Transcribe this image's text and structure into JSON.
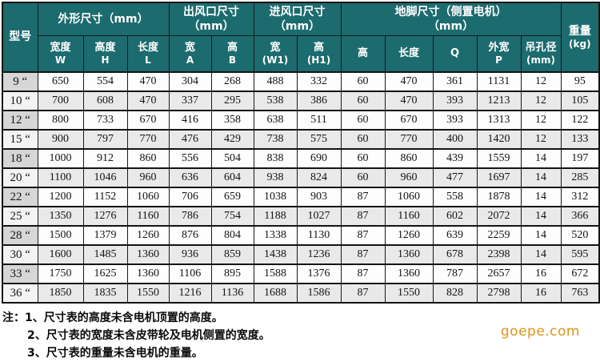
{
  "header": {
    "model_label": "型号",
    "groups": [
      {
        "l1": "外形尺寸（mm）",
        "l2": ""
      },
      {
        "l1": "出风口尺寸",
        "l2": "（mm）"
      },
      {
        "l1": "进风口尺寸",
        "l2": "（mm）"
      },
      {
        "l1": "地脚尺寸（侧置电机）",
        "l2": "（mm）"
      }
    ],
    "weight": {
      "l1": "重量",
      "l2": "(kg)"
    },
    "subcols": [
      {
        "l1": "宽度",
        "l2": "W"
      },
      {
        "l1": "高度",
        "l2": "H"
      },
      {
        "l1": "长度",
        "l2": "L"
      },
      {
        "l1": "宽",
        "l2": "A"
      },
      {
        "l1": "高",
        "l2": "B"
      },
      {
        "l1": "宽",
        "l2": "(W1)"
      },
      {
        "l1": "高",
        "l2": "(H1)"
      },
      {
        "l1": "高",
        "l2": ""
      },
      {
        "l1": "长度",
        "l2": ""
      },
      {
        "l1": "Q",
        "l2": ""
      },
      {
        "l1": "外宽",
        "l2": "P"
      },
      {
        "l1": "吊孔径",
        "l2": "(mm)"
      }
    ]
  },
  "table": {
    "rows": [
      {
        "model": "9 “",
        "values": [
          650,
          554,
          470,
          304,
          268,
          488,
          332,
          60,
          470,
          361,
          1131,
          12,
          95
        ]
      },
      {
        "model": "10 “",
        "values": [
          700,
          608,
          470,
          337,
          295,
          538,
          386,
          60,
          470,
          393,
          1213,
          12,
          105
        ]
      },
      {
        "model": "12 “",
        "values": [
          800,
          733,
          670,
          416,
          358,
          638,
          511,
          60,
          670,
          393,
          1313,
          12,
          122
        ]
      },
      {
        "model": "15 “",
        "values": [
          900,
          797,
          770,
          476,
          429,
          738,
          575,
          60,
          770,
          400,
          1420,
          12,
          133
        ]
      },
      {
        "model": "18 “",
        "values": [
          1000,
          912,
          860,
          556,
          504,
          838,
          690,
          60,
          860,
          439,
          1559,
          14,
          197
        ]
      },
      {
        "model": "20 “",
        "values": [
          1100,
          1046,
          960,
          636,
          604,
          938,
          824,
          60,
          960,
          477,
          1697,
          14,
          285
        ]
      },
      {
        "model": "22 “",
        "values": [
          1200,
          1152,
          1060,
          706,
          659,
          1038,
          903,
          87,
          1060,
          558,
          1878,
          14,
          312
        ]
      },
      {
        "model": "25 “",
        "values": [
          1350,
          1276,
          1160,
          786,
          754,
          1188,
          1027,
          87,
          1160,
          602,
          2072,
          14,
          366
        ]
      },
      {
        "model": "28 “",
        "values": [
          1500,
          1379,
          1260,
          876,
          804,
          1338,
          1130,
          87,
          1260,
          639,
          2259,
          14,
          520
        ]
      },
      {
        "model": "30 “",
        "values": [
          1600,
          1485,
          1360,
          936,
          859,
          1438,
          1236,
          87,
          1360,
          678,
          2398,
          14,
          595
        ]
      },
      {
        "model": "33 “",
        "values": [
          1750,
          1625,
          1360,
          1106,
          895,
          1588,
          1376,
          87,
          1360,
          787,
          2657,
          16,
          672
        ]
      },
      {
        "model": "36 “",
        "values": [
          1850,
          1835,
          1550,
          1216,
          1136,
          1688,
          1586,
          87,
          1550,
          828,
          2798,
          16,
          763
        ]
      }
    ]
  },
  "notes": {
    "prefix": "注：",
    "items": [
      "1、尺寸表的高度未含电机顶置的高度。",
      "2、尺寸表的宽度未含皮带轮及电机侧置的宽度。",
      "3、尺寸表的重量未含电机的重量。"
    ]
  },
  "watermark": {
    "text": "goepe.com"
  },
  "colors": {
    "header_bg": "#1c6b6e",
    "header_text": "#ffffff",
    "row_light": "#fdfdfd",
    "row_dark": "#e9e9e9",
    "model_dark": "#d6d6d6",
    "model_light": "#f3f3f3",
    "border": "#1a1a1a",
    "watermark": "#dd9417"
  }
}
